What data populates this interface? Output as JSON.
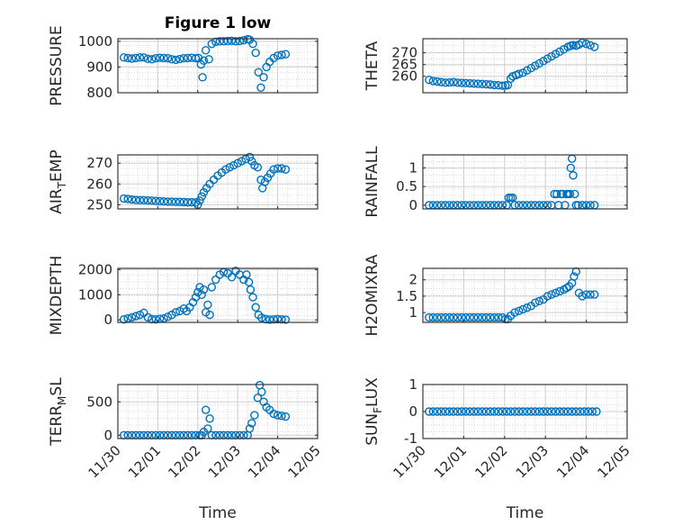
{
  "figure": {
    "title": "Figure 1 low",
    "colors": {
      "marker": "#0072bd",
      "axis": "#262626",
      "grid": "#dddddd"
    }
  },
  "chart_data": [
    {
      "type": "scatter",
      "title": "Figure 1 low",
      "ylabel": "PRESSURE",
      "ylabel_sub": "",
      "ylabel_rest": "",
      "xlim": [
        0,
        5
      ],
      "ylim": [
        800,
        1010
      ],
      "yticks": [
        800,
        900,
        1000
      ],
      "xticks": [],
      "grid": true,
      "x": [
        0.15,
        0.25,
        0.35,
        0.45,
        0.55,
        0.65,
        0.75,
        0.85,
        0.95,
        1.05,
        1.15,
        1.25,
        1.35,
        1.45,
        1.55,
        1.65,
        1.75,
        1.85,
        1.95,
        2.02,
        2.08,
        2.12,
        2.15,
        2.2,
        2.28,
        2.35,
        2.45,
        2.55,
        2.65,
        2.75,
        2.85,
        2.95,
        3.05,
        3.15,
        3.25,
        3.3,
        3.38,
        3.45,
        3.52,
        3.58,
        3.65,
        3.72,
        3.8,
        3.9,
        4.0,
        4.1,
        4.2
      ],
      "y": [
        937,
        935,
        933,
        935,
        937,
        937,
        932,
        930,
        934,
        936,
        935,
        934,
        930,
        928,
        931,
        934,
        935,
        936,
        934,
        935,
        910,
        860,
        925,
        965,
        930,
        990,
        998,
        1000,
        1000,
        1001,
        1002,
        1000,
        1001,
        1004,
        1008,
        1006,
        990,
        955,
        880,
        820,
        860,
        900,
        920,
        935,
        944,
        947,
        950
      ]
    },
    {
      "type": "scatter",
      "title": "",
      "ylabel": "THETA",
      "ylabel_sub": "",
      "ylabel_rest": "",
      "xlim": [
        0,
        5
      ],
      "ylim": [
        253,
        276
      ],
      "yticks": [
        260,
        265,
        270
      ],
      "xticks": [],
      "grid": true,
      "x": [
        0.15,
        0.25,
        0.35,
        0.45,
        0.55,
        0.65,
        0.75,
        0.85,
        0.95,
        1.05,
        1.15,
        1.25,
        1.35,
        1.45,
        1.55,
        1.65,
        1.75,
        1.85,
        1.95,
        2.02,
        2.08,
        2.15,
        2.2,
        2.28,
        2.35,
        2.45,
        2.55,
        2.65,
        2.75,
        2.85,
        2.95,
        3.05,
        3.15,
        3.25,
        3.35,
        3.45,
        3.55,
        3.62,
        3.68,
        3.75,
        3.82,
        3.9,
        4.0,
        4.1,
        4.2
      ],
      "y": [
        258.5,
        258,
        257.8,
        257.5,
        257.3,
        257.4,
        257.5,
        257.3,
        257.2,
        257.1,
        257,
        256.9,
        256.8,
        256.7,
        256.6,
        256.5,
        256.3,
        256.2,
        256,
        256.1,
        256.3,
        259,
        260,
        260.5,
        261,
        261.5,
        262.5,
        263.5,
        264.5,
        265.5,
        266.5,
        267.5,
        268.5,
        269.5,
        270.5,
        271.5,
        272.5,
        273,
        273.3,
        273,
        273.5,
        274.3,
        273.8,
        273.2,
        272.5
      ]
    },
    {
      "type": "scatter",
      "title": "",
      "ylabel": "AIR",
      "ylabel_sub": "T",
      "ylabel_rest": "EMP",
      "xlim": [
        0,
        5
      ],
      "ylim": [
        248,
        274
      ],
      "yticks": [
        250,
        260,
        270
      ],
      "xticks": [],
      "grid": true,
      "x": [
        0.15,
        0.25,
        0.35,
        0.45,
        0.55,
        0.65,
        0.75,
        0.85,
        0.95,
        1.05,
        1.15,
        1.25,
        1.35,
        1.45,
        1.55,
        1.65,
        1.75,
        1.85,
        1.95,
        2.0,
        2.05,
        2.1,
        2.15,
        2.22,
        2.3,
        2.4,
        2.5,
        2.6,
        2.7,
        2.8,
        2.9,
        3.0,
        3.1,
        3.2,
        3.3,
        3.35,
        3.42,
        3.5,
        3.58,
        3.62,
        3.68,
        3.75,
        3.82,
        3.9,
        4.0,
        4.1,
        4.2
      ],
      "y": [
        253,
        252.8,
        252.5,
        252.3,
        252.2,
        252.2,
        252.1,
        252,
        251.8,
        251.7,
        251.6,
        251.5,
        251.5,
        251.4,
        251.4,
        251.3,
        251.2,
        251.2,
        251.1,
        250,
        252,
        254,
        256,
        258,
        260,
        262,
        264,
        265.5,
        267,
        268,
        269,
        270,
        271,
        272,
        273,
        271,
        269,
        268,
        262,
        258,
        261,
        263,
        265,
        267,
        267.5,
        267.5,
        267
      ]
    },
    {
      "type": "scatter",
      "title": "",
      "ylabel": "RAINFALL",
      "ylabel_sub": "",
      "ylabel_rest": "",
      "xlim": [
        0,
        5
      ],
      "ylim": [
        -0.1,
        1.35
      ],
      "yticks": [
        0,
        0.5,
        1
      ],
      "xticks": [],
      "grid": true,
      "x": [
        0.15,
        0.25,
        0.35,
        0.45,
        0.55,
        0.65,
        0.75,
        0.85,
        0.95,
        1.05,
        1.15,
        1.25,
        1.35,
        1.45,
        1.55,
        1.65,
        1.75,
        1.85,
        1.95,
        2.05,
        2.1,
        2.15,
        2.2,
        2.25,
        2.35,
        2.45,
        2.55,
        2.65,
        2.75,
        2.85,
        2.95,
        3.05,
        3.15,
        3.22,
        3.28,
        3.32,
        3.38,
        3.42,
        3.48,
        3.52,
        3.56,
        3.6,
        3.62,
        3.65,
        3.68,
        3.72,
        3.75,
        3.8,
        3.9,
        4.0,
        4.1,
        4.2
      ],
      "y": [
        0,
        0,
        0,
        0,
        0,
        0,
        0,
        0,
        0,
        0,
        0,
        0,
        0,
        0,
        0,
        0,
        0,
        0,
        0,
        0,
        0.2,
        0.2,
        0.2,
        0,
        0,
        0,
        0,
        0,
        0,
        0,
        0,
        0,
        0,
        0.3,
        0.3,
        0,
        0.3,
        0.3,
        0,
        0.3,
        0.3,
        0.3,
        1.0,
        1.25,
        0.8,
        0.3,
        0,
        0,
        0,
        0,
        0,
        0
      ]
    },
    {
      "type": "scatter",
      "title": "",
      "ylabel": "MIXDEPTH",
      "ylabel_sub": "",
      "ylabel_rest": "",
      "xlim": [
        0,
        5
      ],
      "ylim": [
        -100,
        2050
      ],
      "yticks": [
        0,
        1000,
        2000
      ],
      "xticks": [],
      "grid": true,
      "x": [
        0.15,
        0.25,
        0.35,
        0.45,
        0.55,
        0.65,
        0.75,
        0.85,
        0.95,
        1.05,
        1.15,
        1.25,
        1.35,
        1.45,
        1.55,
        1.65,
        1.72,
        1.8,
        1.88,
        1.95,
        2.0,
        2.05,
        2.1,
        2.15,
        2.2,
        2.25,
        2.3,
        2.35,
        2.45,
        2.55,
        2.65,
        2.75,
        2.85,
        2.95,
        3.05,
        3.15,
        3.22,
        3.28,
        3.32,
        3.38,
        3.45,
        3.52,
        3.6,
        3.7,
        3.8,
        3.9,
        4.0,
        4.1,
        4.2
      ],
      "y": [
        20,
        60,
        100,
        150,
        200,
        280,
        100,
        30,
        20,
        40,
        60,
        120,
        200,
        300,
        350,
        450,
        350,
        500,
        700,
        900,
        1100,
        1300,
        1000,
        1200,
        300,
        600,
        200,
        1300,
        1600,
        1800,
        1900,
        1850,
        1700,
        1950,
        1800,
        1600,
        1800,
        1500,
        1200,
        900,
        500,
        200,
        80,
        30,
        10,
        20,
        30,
        20,
        10
      ]
    },
    {
      "type": "scatter",
      "title": "",
      "ylabel": "H2OMIXRA",
      "ylabel_sub": "",
      "ylabel_rest": "",
      "xlim": [
        0,
        5
      ],
      "ylim": [
        0.7,
        2.35
      ],
      "yticks": [
        1,
        1.5,
        2
      ],
      "xticks": [],
      "grid": true,
      "x": [
        0.15,
        0.25,
        0.35,
        0.45,
        0.55,
        0.65,
        0.75,
        0.85,
        0.95,
        1.05,
        1.15,
        1.25,
        1.35,
        1.45,
        1.55,
        1.65,
        1.75,
        1.85,
        1.95,
        2.02,
        2.08,
        2.15,
        2.25,
        2.35,
        2.45,
        2.55,
        2.65,
        2.75,
        2.85,
        2.95,
        3.05,
        3.15,
        3.25,
        3.35,
        3.45,
        3.52,
        3.58,
        3.65,
        3.7,
        3.75,
        3.82,
        3.9,
        4.0,
        4.1,
        4.2
      ],
      "y": [
        0.85,
        0.85,
        0.85,
        0.85,
        0.85,
        0.85,
        0.85,
        0.85,
        0.85,
        0.85,
        0.85,
        0.85,
        0.85,
        0.85,
        0.85,
        0.85,
        0.85,
        0.85,
        0.85,
        0.8,
        0.8,
        0.9,
        1.0,
        1.05,
        1.1,
        1.15,
        1.2,
        1.3,
        1.35,
        1.4,
        1.5,
        1.55,
        1.6,
        1.65,
        1.7,
        1.75,
        1.8,
        1.9,
        2.1,
        2.25,
        1.6,
        1.5,
        1.55,
        1.55,
        1.55
      ]
    },
    {
      "type": "scatter",
      "title": "",
      "ylabel": "TERR",
      "ylabel_sub": "M",
      "ylabel_rest": "SL",
      "xlim": [
        0,
        5
      ],
      "ylim": [
        -50,
        760
      ],
      "yticks": [
        0,
        500
      ],
      "xticks": [
        "11/30",
        "12/01",
        "12/02",
        "12/03",
        "12/04",
        "12/05"
      ],
      "xlabel": "Time",
      "grid": true,
      "x": [
        0.15,
        0.25,
        0.35,
        0.45,
        0.55,
        0.65,
        0.75,
        0.85,
        0.95,
        1.05,
        1.15,
        1.25,
        1.35,
        1.45,
        1.55,
        1.65,
        1.75,
        1.85,
        1.95,
        2.05,
        2.1,
        2.15,
        2.2,
        2.25,
        2.3,
        2.35,
        2.45,
        2.55,
        2.65,
        2.75,
        2.85,
        2.95,
        3.05,
        3.15,
        3.25,
        3.3,
        3.35,
        3.42,
        3.5,
        3.55,
        3.6,
        3.65,
        3.72,
        3.8,
        3.9,
        4.0,
        4.1,
        4.2
      ],
      "y": [
        0,
        0,
        0,
        0,
        0,
        0,
        0,
        0,
        0,
        0,
        0,
        0,
        0,
        0,
        0,
        0,
        0,
        0,
        0,
        0,
        0,
        50,
        380,
        100,
        250,
        0,
        0,
        0,
        0,
        0,
        0,
        0,
        0,
        0,
        0,
        100,
        180,
        300,
        560,
        750,
        650,
        500,
        420,
        380,
        320,
        300,
        290,
        280
      ]
    },
    {
      "type": "scatter",
      "title": "",
      "ylabel": "SUN",
      "ylabel_sub": "F",
      "ylabel_rest": "LUX",
      "xlim": [
        0,
        5
      ],
      "ylim": [
        -1,
        1
      ],
      "yticks": [
        -1,
        0,
        1
      ],
      "xticks": [
        "11/30",
        "12/01",
        "12/02",
        "12/03",
        "12/04",
        "12/05"
      ],
      "xlabel": "Time",
      "grid": true,
      "x": [
        0.15,
        0.25,
        0.35,
        0.45,
        0.55,
        0.65,
        0.75,
        0.85,
        0.95,
        1.05,
        1.15,
        1.25,
        1.35,
        1.45,
        1.55,
        1.65,
        1.75,
        1.85,
        1.95,
        2.05,
        2.15,
        2.25,
        2.35,
        2.45,
        2.55,
        2.65,
        2.75,
        2.85,
        2.95,
        3.05,
        3.15,
        3.25,
        3.35,
        3.45,
        3.55,
        3.65,
        3.75,
        3.85,
        3.95,
        4.05,
        4.15,
        4.25
      ],
      "y": [
        0,
        0,
        0,
        0,
        0,
        0,
        0,
        0,
        0,
        0,
        0,
        0,
        0,
        0,
        0,
        0,
        0,
        0,
        0,
        0,
        0,
        0,
        0,
        0,
        0,
        0,
        0,
        0,
        0,
        0,
        0,
        0,
        0,
        0,
        0,
        0,
        0,
        0,
        0,
        0,
        0,
        0
      ]
    }
  ]
}
